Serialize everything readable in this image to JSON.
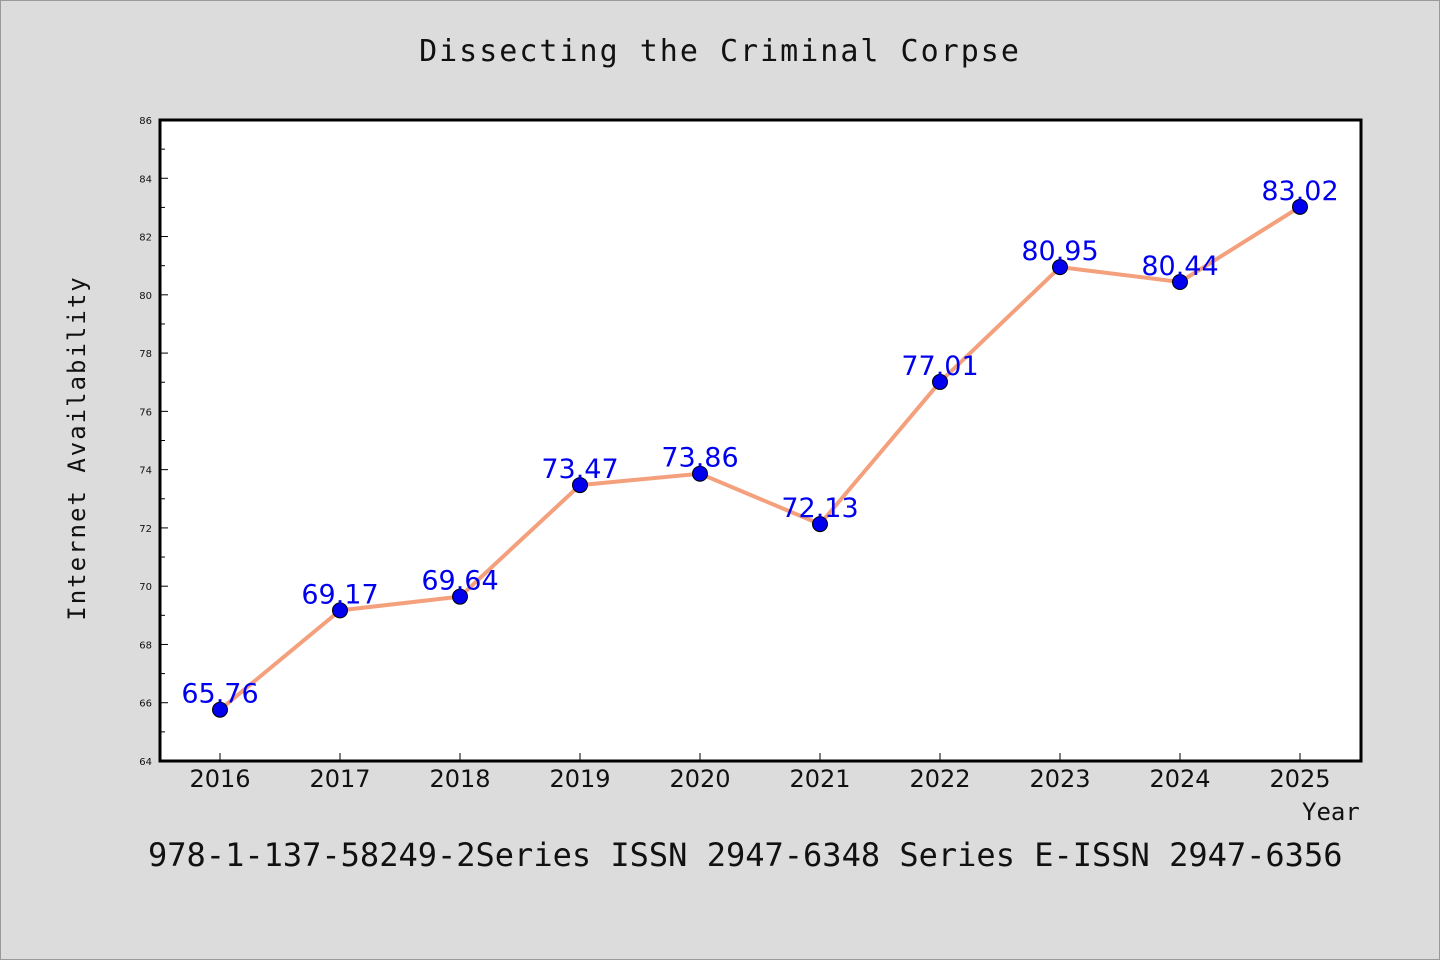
{
  "chart_data": {
    "type": "line",
    "title": "Dissecting the Criminal Corpse",
    "xlabel": "Year",
    "ylabel": "Internet Availability",
    "categories": [
      "2016",
      "2017",
      "2018",
      "2019",
      "2020",
      "2021",
      "2022",
      "2023",
      "2024",
      "2025"
    ],
    "series": [
      {
        "values": [
          65.76,
          69.17,
          69.64,
          73.47,
          73.86,
          72.13,
          77.01,
          80.95,
          80.44,
          83.02
        ]
      }
    ],
    "data_labels": [
      "65.76",
      "69.17",
      "69.64",
      "73.47",
      "73.86",
      "72.13",
      "77.01",
      "80.95",
      "80.44",
      "83.02"
    ],
    "ylim": [
      64,
      86
    ],
    "yticks": [
      64,
      66,
      68,
      70,
      72,
      74,
      76,
      78,
      80,
      82,
      84,
      86
    ],
    "grid": false,
    "colors": {
      "line": "#f4a07c",
      "marker": "#0000ee",
      "label": "#0000ee",
      "background": "#dcdcdc",
      "plot_area": "#ffffff"
    }
  },
  "footer": {
    "text": "978-1-137-58249-2Series ISSN 2947-6348 Series E-ISSN 2947-6356"
  }
}
